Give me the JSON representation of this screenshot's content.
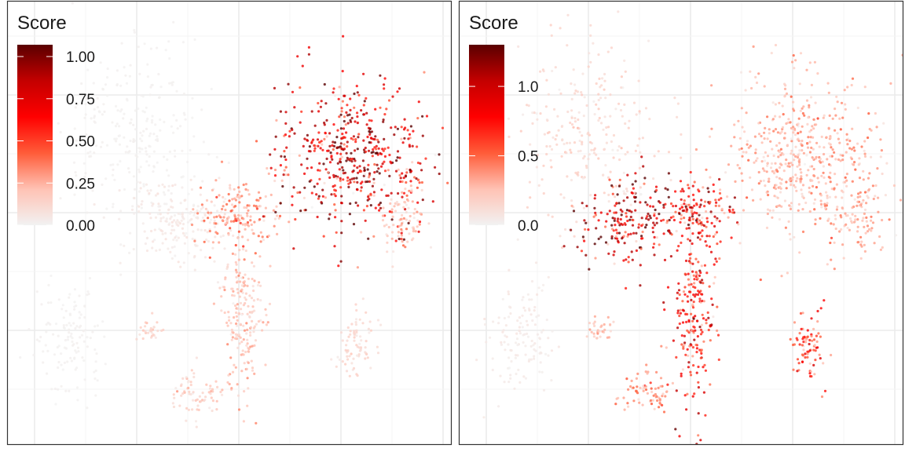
{
  "chart_data": [
    {
      "type": "scatter",
      "title": "",
      "xlabel": "",
      "ylabel": "",
      "grid": true,
      "legend": {
        "title": "Score",
        "placement": "top-left",
        "range": [
          0,
          1.07
        ],
        "ticks": [
          0,
          0.25,
          0.5,
          0.75,
          1.0
        ],
        "tick_labels": [
          "0.00",
          "0.25",
          "0.50",
          "0.75",
          "1.00"
        ]
      },
      "colors": [
        "#f2f2f2",
        "#ffc2b4",
        "#ff5c39",
        "#ff0000",
        "#c40000",
        "#5a0000"
      ],
      "clusters": [
        {
          "id": "left-upper",
          "score": 0.01
        },
        {
          "id": "left-lower",
          "score": 0.01
        },
        {
          "id": "center",
          "score": 0.05
        },
        {
          "id": "bridge",
          "score": 0.3
        },
        {
          "id": "right-lobe",
          "score": 0.75
        },
        {
          "id": "right-edge",
          "score": 0.2
        },
        {
          "id": "stem",
          "score": 0.2
        },
        {
          "id": "foot-right",
          "score": 0.12
        },
        {
          "id": "foot-left",
          "score": 0.15
        },
        {
          "id": "small-blob",
          "score": 0.15
        }
      ]
    },
    {
      "type": "scatter",
      "title": "",
      "xlabel": "",
      "ylabel": "",
      "grid": true,
      "legend": {
        "title": "Score",
        "placement": "top-left",
        "range": [
          0,
          1.3
        ],
        "ticks": [
          0,
          0.5,
          1.0
        ],
        "tick_labels": [
          "0.0",
          "0.5",
          "1.0"
        ]
      },
      "colors": [
        "#f2f2f2",
        "#ffc2b4",
        "#ff5c39",
        "#ff0000",
        "#c40000",
        "#5a0000"
      ],
      "clusters": [
        {
          "id": "left-upper",
          "score": 0.15
        },
        {
          "id": "left-lower",
          "score": 0.05
        },
        {
          "id": "center",
          "score": 1.0
        },
        {
          "id": "bridge",
          "score": 0.75
        },
        {
          "id": "right-lobe",
          "score": 0.3
        },
        {
          "id": "right-edge",
          "score": 0.3
        },
        {
          "id": "stem",
          "score": 0.7
        },
        {
          "id": "foot-right",
          "score": 0.6
        },
        {
          "id": "foot-left",
          "score": 0.35
        },
        {
          "id": "small-blob",
          "score": 0.25
        }
      ]
    }
  ]
}
